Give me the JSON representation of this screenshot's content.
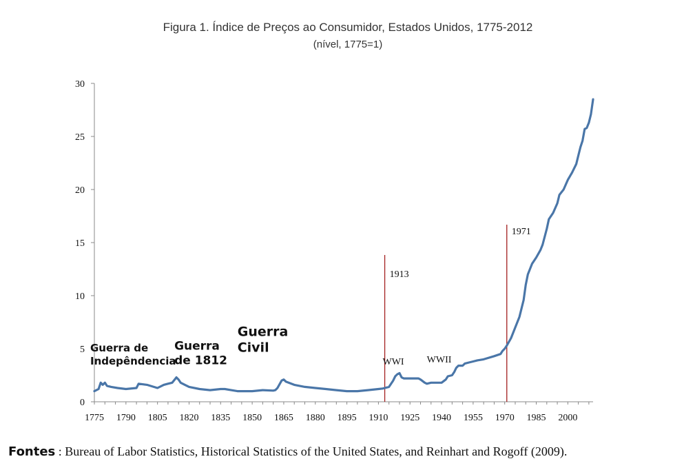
{
  "title": "Figura 1. Índice de Preços ao Consumidor, Estados Unidos, 1775-2012",
  "subtitle": "(nível, 1775=1)",
  "chart_data": {
    "type": "line",
    "title": "Figura 1. Índice de Preços ao Consumidor, Estados Unidos, 1775-2012",
    "subtitle": "(nível, 1775=1)",
    "xlim": [
      1775,
      2012
    ],
    "ylim": [
      0,
      30
    ],
    "x_ticks": [
      1775,
      1790,
      1805,
      1820,
      1835,
      1850,
      1865,
      1880,
      1895,
      1910,
      1925,
      1940,
      1955,
      1970,
      1985,
      2000
    ],
    "y_ticks": [
      0,
      5,
      10,
      15,
      20,
      25,
      30
    ],
    "grid": false,
    "legend": "none",
    "line_color": "#4a76a8",
    "series": [
      {
        "x": [
          1775,
          1777,
          1778,
          1779,
          1780,
          1781,
          1783,
          1786,
          1790,
          1795,
          1796,
          1800,
          1805,
          1808,
          1810,
          1812,
          1814,
          1815,
          1816,
          1818,
          1820,
          1825,
          1830,
          1835,
          1837,
          1840,
          1843,
          1845,
          1850,
          1855,
          1860,
          1861,
          1862,
          1864,
          1865,
          1866,
          1870,
          1875,
          1880,
          1885,
          1890,
          1895,
          1900,
          1905,
          1910,
          1912,
          1913,
          1915,
          1917,
          1918,
          1919,
          1920,
          1921,
          1922,
          1925,
          1929,
          1930,
          1932,
          1933,
          1935,
          1938,
          1940,
          1942,
          1943,
          1945,
          1946,
          1947,
          1948,
          1950,
          1951,
          1953,
          1955,
          1957,
          1960,
          1965,
          1968,
          1969,
          1970,
          1971,
          1973,
          1975,
          1977,
          1979,
          1980,
          1981,
          1983,
          1985,
          1987,
          1988,
          1990,
          1991,
          1993,
          1995,
          1996,
          1998,
          2000,
          2002,
          2004,
          2005,
          2006,
          2007,
          2008,
          2009,
          2010,
          2011,
          2012
        ],
        "y": [
          1.0,
          1.2,
          1.8,
          1.6,
          1.8,
          1.5,
          1.4,
          1.3,
          1.2,
          1.3,
          1.7,
          1.6,
          1.3,
          1.6,
          1.7,
          1.8,
          2.3,
          2.1,
          1.8,
          1.6,
          1.4,
          1.2,
          1.1,
          1.2,
          1.2,
          1.1,
          1.0,
          1.0,
          1.0,
          1.1,
          1.05,
          1.1,
          1.3,
          2.0,
          2.1,
          1.9,
          1.6,
          1.4,
          1.3,
          1.2,
          1.1,
          1.0,
          1.0,
          1.1,
          1.2,
          1.25,
          1.3,
          1.4,
          2.0,
          2.4,
          2.6,
          2.7,
          2.3,
          2.2,
          2.2,
          2.2,
          2.1,
          1.8,
          1.7,
          1.8,
          1.8,
          1.8,
          2.1,
          2.4,
          2.5,
          2.8,
          3.2,
          3.4,
          3.4,
          3.6,
          3.7,
          3.8,
          3.9,
          4.0,
          4.3,
          4.5,
          4.8,
          5.0,
          5.3,
          6.0,
          7.0,
          8.0,
          9.6,
          11.0,
          12.0,
          13.0,
          13.6,
          14.3,
          14.8,
          16.3,
          17.2,
          17.8,
          18.7,
          19.5,
          20.0,
          20.9,
          21.6,
          22.4,
          23.2,
          24.0,
          24.6,
          25.7,
          25.8,
          26.3,
          27.1,
          28.5
        ]
      }
    ],
    "vlines": [
      {
        "x": 1913,
        "label": "1913",
        "color": "#a31f1f"
      },
      {
        "x": 1971,
        "label": "1971",
        "color": "#a31f1f"
      }
    ],
    "annotations": [
      {
        "text": "Guerra de",
        "x": 1775,
        "y": 4.75,
        "font": 15
      },
      {
        "text": "Indepêndencia",
        "x": 1775,
        "y": 3.5,
        "font": 15
      },
      {
        "text": "Guerra",
        "x": 1813,
        "y": 4.9,
        "font": 17
      },
      {
        "text": "de 1812",
        "x": 1813,
        "y": 3.55,
        "font": 17
      },
      {
        "text": "Guerra",
        "x": 1843,
        "y": 6.2,
        "font": 19
      },
      {
        "text": "Civil",
        "x": 1843,
        "y": 4.7,
        "font": 19
      },
      {
        "text": "WWI",
        "x": 1912,
        "y": 3.5,
        "font": 15
      },
      {
        "text": "WWII",
        "x": 1933,
        "y": 3.7,
        "font": 15
      }
    ]
  },
  "footer": {
    "label": "Fontes",
    "separator": " : ",
    "text": "Bureau of Labor Statistics, Historical Statistics of the United States, and Reinhart and Rogoff (2009)."
  }
}
